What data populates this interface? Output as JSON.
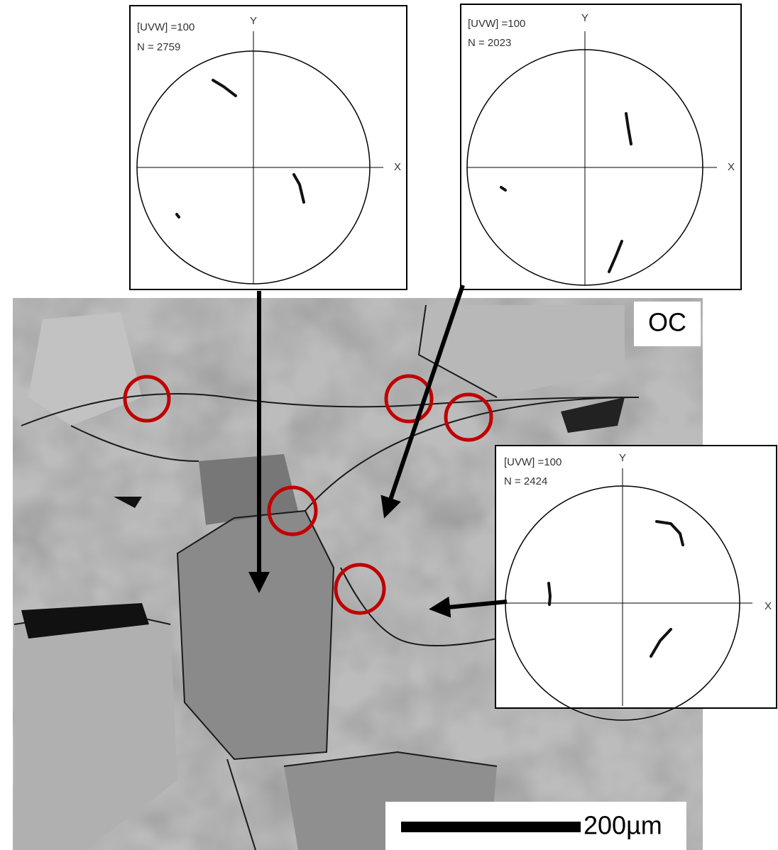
{
  "image_label": "OC",
  "scale_bar": "200µm",
  "pole_figures": [
    {
      "uvw": "[UVW] =100",
      "n": "N = 2759",
      "y_axis": "Y",
      "x_axis": "X"
    },
    {
      "uvw": "[UVW] =100",
      "n": "N = 2023",
      "y_axis": "Y",
      "x_axis": "X"
    },
    {
      "uvw": "[UVW] =100",
      "n": "N = 2424",
      "y_axis": "Y",
      "x_axis": "X"
    }
  ]
}
